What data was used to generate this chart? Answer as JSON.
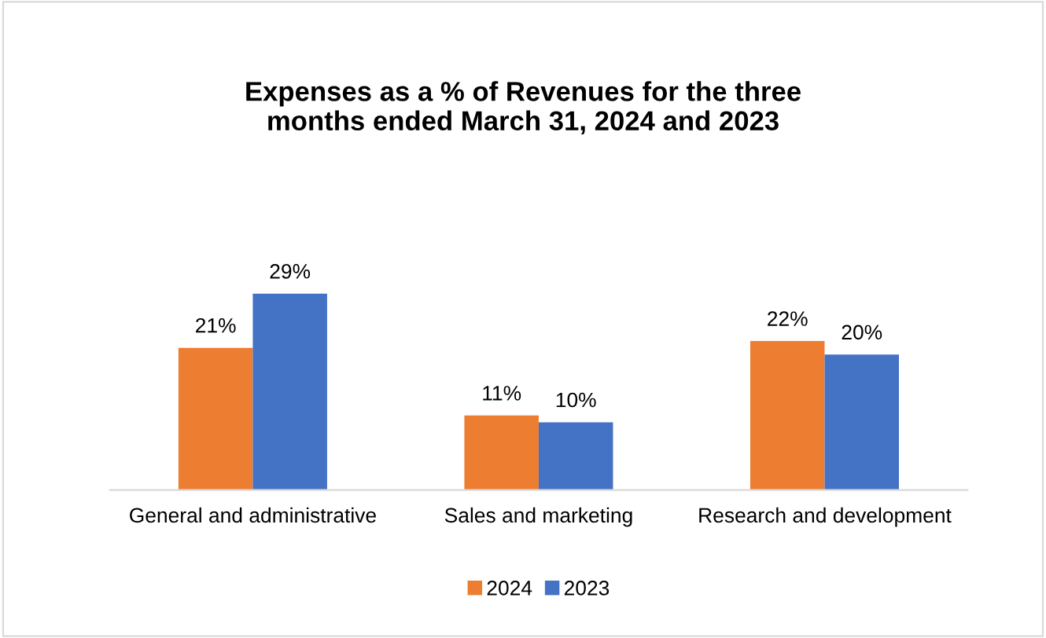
{
  "chart_data": {
    "type": "bar",
    "title": "Expenses as a % of Revenues for the three\nmonths ended March 31, 2024 and 2023",
    "categories": [
      "General and administrative",
      "Sales and marketing",
      "Research and development"
    ],
    "series": [
      {
        "name": "2024",
        "color": "#ed7d31",
        "values": [
          21,
          11,
          22
        ],
        "value_labels": [
          "21%",
          "11%",
          "22%"
        ]
      },
      {
        "name": "2023",
        "color": "#4472c4",
        "values": [
          29,
          10,
          20
        ],
        "value_labels": [
          "29%",
          "10%",
          "20%"
        ]
      }
    ],
    "legend": "bottom"
  }
}
